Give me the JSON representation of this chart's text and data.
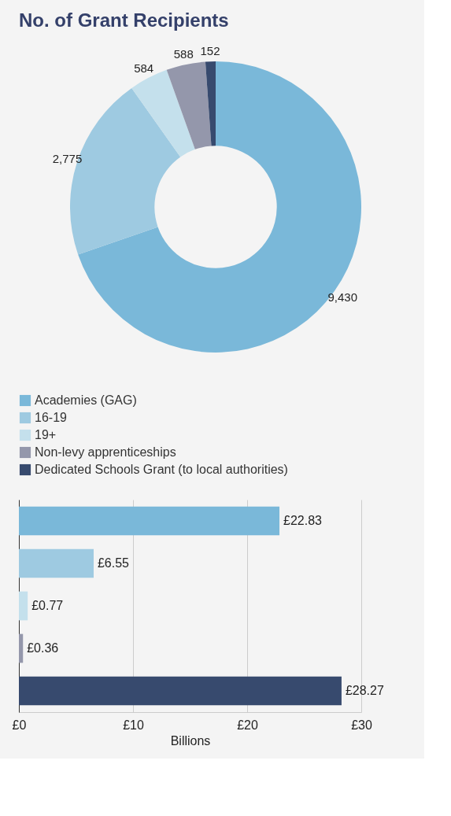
{
  "chart_data": [
    {
      "type": "donut",
      "title": "No. of Grant Recipients",
      "categories": [
        "Academies (GAG)",
        "16-19",
        "19+",
        "Non-levy apprenticeships",
        "Dedicated Schools Grant (to local authorities)"
      ],
      "values": [
        9430,
        2775,
        584,
        588,
        152
      ],
      "colors": [
        "#7ab8d9",
        "#9ecae1",
        "#c4e0ec",
        "#9497ab",
        "#374a6e"
      ],
      "value_labels": [
        "9,430",
        "2,775",
        "584",
        "588",
        "152"
      ],
      "legend": "bottom"
    },
    {
      "type": "bar",
      "orientation": "horizontal",
      "categories": [
        null,
        null,
        null,
        null,
        null
      ],
      "values": [
        22.83,
        6.55,
        0.77,
        0.36,
        28.27
      ],
      "colors": [
        "#7ab8d9",
        "#9ecae1",
        "#c4e0ec",
        "#9497ab",
        "#374a6e"
      ],
      "value_labels": [
        "£22.83",
        "£6.55",
        "£0.77",
        "£0.36",
        "£28.27"
      ],
      "xlim": [
        0,
        30
      ],
      "xticks": [
        {
          "value": 0,
          "label": "£0"
        },
        {
          "value": 10,
          "label": "£10"
        },
        {
          "value": 20,
          "label": "£20"
        },
        {
          "value": 30,
          "label": "£30"
        }
      ],
      "xlabel": "Billions",
      "grid": "x",
      "tick_labels": "x"
    }
  ]
}
